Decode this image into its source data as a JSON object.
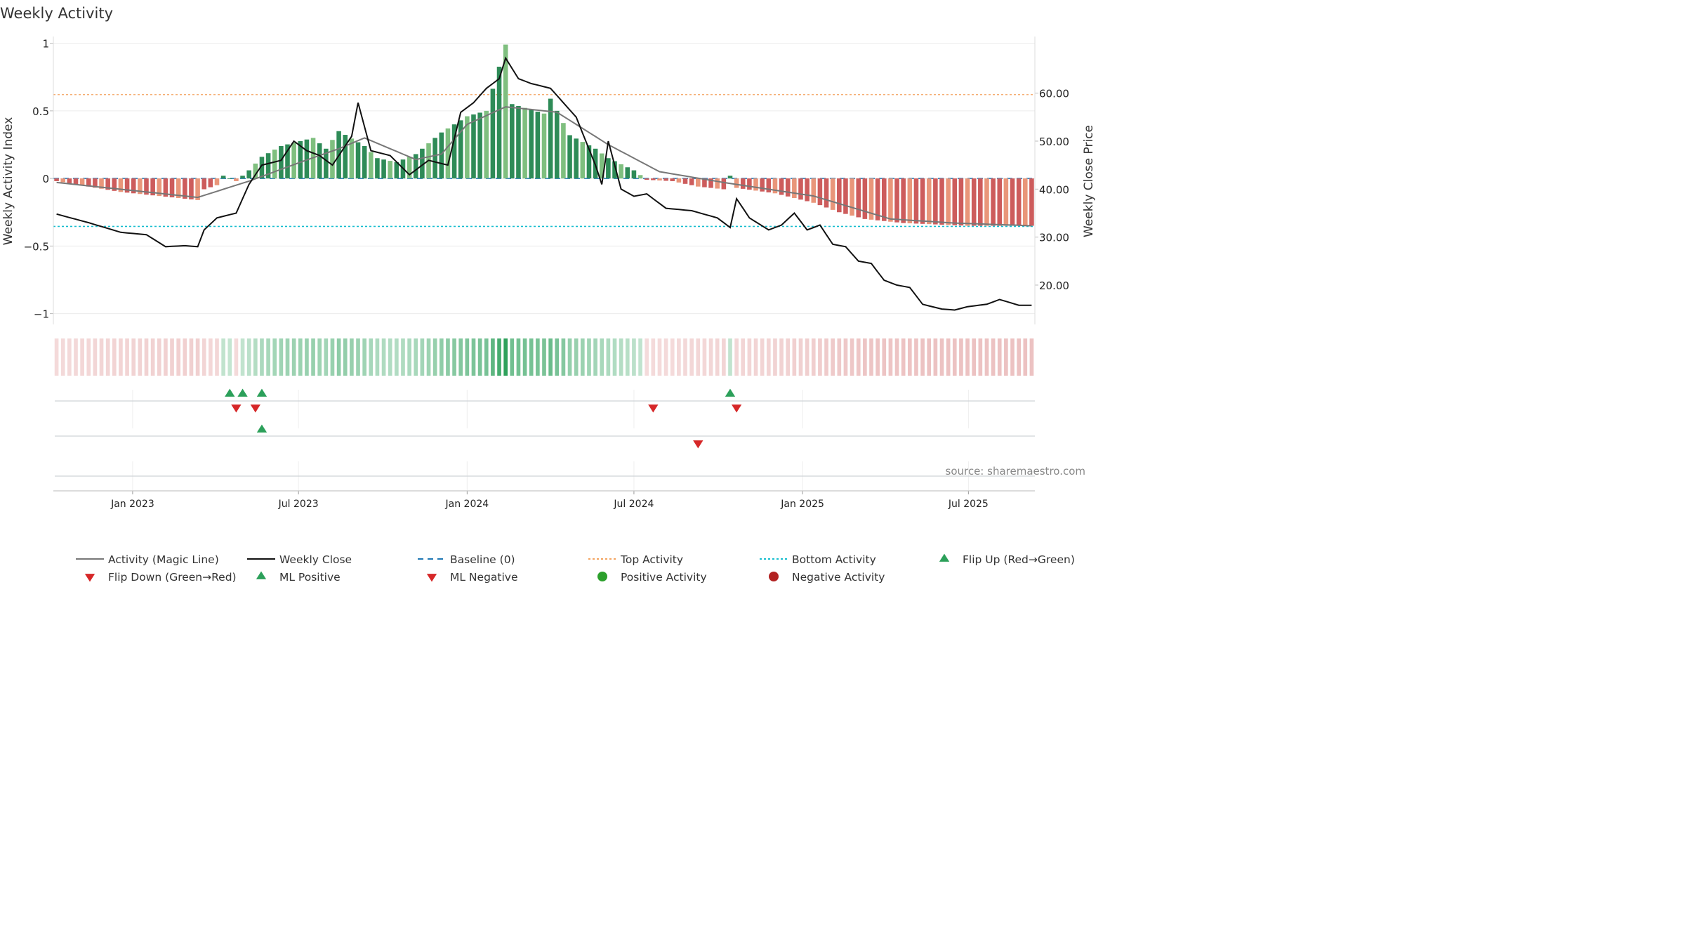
{
  "chart_data": {
    "type": "bar",
    "title": "Weekly Activity",
    "ylabel_left": "Weekly Activity Index",
    "ylabel_right": "Weekly Close Price",
    "xlabel": "",
    "source": "source: sharemaestro.com",
    "left_ticks": [
      "1",
      "0.5",
      "0",
      "−0.5",
      "−1"
    ],
    "left_tick_values": [
      1,
      0.5,
      0,
      -0.5,
      -1
    ],
    "ylim_left": [
      -1.08,
      1.05
    ],
    "right_ticks": [
      "60.00",
      "50.00",
      "40.00",
      "30.00",
      "20.00"
    ],
    "right_tick_values": [
      60,
      50,
      40,
      30,
      20
    ],
    "ylim_right": [
      11.8,
      71.8
    ],
    "x_ticks": [
      "Jan 2023",
      "Jul 2023",
      "Jan 2024",
      "Jul 2024",
      "Jan 2025",
      "Jul 2025"
    ],
    "x_tick_dates": [
      "2023-01-01",
      "2023-07-01",
      "2024-01-01",
      "2024-07-01",
      "2025-01-01",
      "2025-07-01"
    ],
    "top_activity": 0.62,
    "bottom_activity": -0.355,
    "grid": true,
    "legend_position": "bottom",
    "colors": {
      "strong_green": "#2e8b57",
      "light_green": "#7fbf7f",
      "strong_red": "#cd5c5c",
      "light_red": "#e9967a",
      "magic_line": "#777777",
      "close_line": "#111111",
      "baseline": "#1f77b4",
      "top_line": "#f4a460",
      "bottom_line": "#17becf",
      "flip_up": "#2ca05a",
      "flip_down": "#d62728"
    },
    "weeks": {
      "start": "2022-10-10",
      "count": 153,
      "activity_segments": [
        [
          0,
          -0.02
        ],
        [
          10,
          -0.1
        ],
        [
          22,
          -0.16
        ],
        [
          23,
          -0.08
        ],
        [
          25,
          -0.05
        ],
        [
          26,
          0.02
        ],
        [
          28,
          -0.02
        ],
        [
          30,
          0.06
        ],
        [
          32,
          0.16
        ],
        [
          35,
          0.24
        ],
        [
          40,
          0.3
        ],
        [
          42,
          0.22
        ],
        [
          44,
          0.35
        ],
        [
          48,
          0.24
        ],
        [
          50,
          0.15
        ],
        [
          53,
          0.12
        ],
        [
          56,
          0.18
        ],
        [
          60,
          0.34
        ],
        [
          64,
          0.46
        ],
        [
          67,
          0.5
        ],
        [
          70,
          0.99
        ],
        [
          71,
          0.55
        ],
        [
          76,
          0.48
        ],
        [
          77,
          0.59
        ],
        [
          80,
          0.32
        ],
        [
          84,
          0.22
        ],
        [
          86,
          0.15
        ],
        [
          90,
          0.06
        ],
        [
          92,
          -0.01
        ],
        [
          96,
          -0.02
        ],
        [
          100,
          -0.06
        ],
        [
          104,
          -0.08
        ],
        [
          105,
          0.02
        ],
        [
          106,
          -0.07
        ],
        [
          112,
          -0.11
        ],
        [
          118,
          -0.18
        ],
        [
          122,
          -0.25
        ],
        [
          126,
          -0.3
        ],
        [
          132,
          -0.33
        ],
        [
          142,
          -0.35
        ],
        [
          152,
          -0.35
        ]
      ],
      "magic_line_segments": [
        [
          0,
          -0.03
        ],
        [
          22,
          -0.14
        ],
        [
          30,
          -0.02
        ],
        [
          38,
          0.12
        ],
        [
          44,
          0.22
        ],
        [
          48,
          0.3
        ],
        [
          56,
          0.14
        ],
        [
          60,
          0.18
        ],
        [
          64,
          0.4
        ],
        [
          70,
          0.53
        ],
        [
          78,
          0.49
        ],
        [
          86,
          0.25
        ],
        [
          94,
          0.05
        ],
        [
          104,
          -0.03
        ],
        [
          118,
          -0.13
        ],
        [
          130,
          -0.3
        ],
        [
          140,
          -0.33
        ],
        [
          146,
          -0.34
        ],
        [
          152,
          -0.35
        ]
      ],
      "close_segments": [
        [
          0,
          34.8
        ],
        [
          5,
          33
        ],
        [
          10,
          31
        ],
        [
          14,
          30.5
        ],
        [
          17,
          28
        ],
        [
          20,
          28.2
        ],
        [
          22,
          28
        ],
        [
          23,
          31.5
        ],
        [
          25,
          34
        ],
        [
          28,
          35
        ],
        [
          30,
          41
        ],
        [
          32,
          45
        ],
        [
          35,
          46
        ],
        [
          37,
          50
        ],
        [
          39,
          48
        ],
        [
          41,
          47
        ],
        [
          43,
          45
        ],
        [
          45,
          49
        ],
        [
          46,
          51
        ],
        [
          47,
          58
        ],
        [
          49,
          48
        ],
        [
          52,
          47
        ],
        [
          55,
          43
        ],
        [
          58,
          46
        ],
        [
          61,
          45
        ],
        [
          63,
          56
        ],
        [
          65,
          58
        ],
        [
          67,
          61
        ],
        [
          69,
          63
        ],
        [
          70,
          67.3
        ],
        [
          72,
          63
        ],
        [
          74,
          62
        ],
        [
          77,
          61
        ],
        [
          79,
          58
        ],
        [
          81,
          55
        ],
        [
          84,
          45
        ],
        [
          85,
          41
        ],
        [
          86,
          50
        ],
        [
          88,
          40
        ],
        [
          90,
          38.5
        ],
        [
          92,
          39
        ],
        [
          95,
          36
        ],
        [
          99,
          35.5
        ],
        [
          103,
          34
        ],
        [
          105,
          32
        ],
        [
          106,
          38
        ],
        [
          108,
          34
        ],
        [
          111,
          31.5
        ],
        [
          113,
          32.5
        ],
        [
          115,
          35
        ],
        [
          117,
          31.5
        ],
        [
          119,
          32.5
        ],
        [
          121,
          28.5
        ],
        [
          123,
          28
        ],
        [
          125,
          25
        ],
        [
          127,
          24.5
        ],
        [
          129,
          21
        ],
        [
          131,
          20
        ],
        [
          133,
          19.5
        ],
        [
          135,
          16
        ],
        [
          138,
          15
        ],
        [
          140,
          14.8
        ],
        [
          142,
          15.5
        ],
        [
          145,
          16
        ],
        [
          147,
          17
        ],
        [
          150,
          15.8
        ],
        [
          152,
          15.8
        ]
      ],
      "flip_up": [
        27,
        29,
        32,
        105
      ],
      "flip_down": [
        28,
        31,
        93,
        106
      ],
      "ml_positive": [
        32
      ],
      "ml_negative": [
        100
      ]
    }
  },
  "legend": {
    "items": [
      {
        "label": "Activity (Magic Line)",
        "kind": "line",
        "color": "#777777",
        "dash": ""
      },
      {
        "label": "Weekly Close",
        "kind": "line",
        "color": "#111111",
        "dash": ""
      },
      {
        "label": "Baseline (0)",
        "kind": "line",
        "color": "#1f77b4",
        "dash": "8,6"
      },
      {
        "label": "Top Activity",
        "kind": "line",
        "color": "#f4a460",
        "dash": "3,3"
      },
      {
        "label": "Bottom Activity",
        "kind": "line",
        "color": "#17becf",
        "dash": "3,3"
      },
      {
        "label": "Flip Up (Red→Green)",
        "kind": "tri-up",
        "color": "#2ca05a"
      },
      {
        "label": "Flip Down (Green→Red)",
        "kind": "tri-down",
        "color": "#d62728"
      },
      {
        "label": "ML Positive",
        "kind": "tri-up",
        "color": "#2ca05a"
      },
      {
        "label": "ML Negative",
        "kind": "tri-down",
        "color": "#d62728"
      },
      {
        "label": "Positive Activity",
        "kind": "dot",
        "color": "#2ca02c"
      },
      {
        "label": "Negative Activity",
        "kind": "dot",
        "color": "#b22222"
      }
    ]
  }
}
